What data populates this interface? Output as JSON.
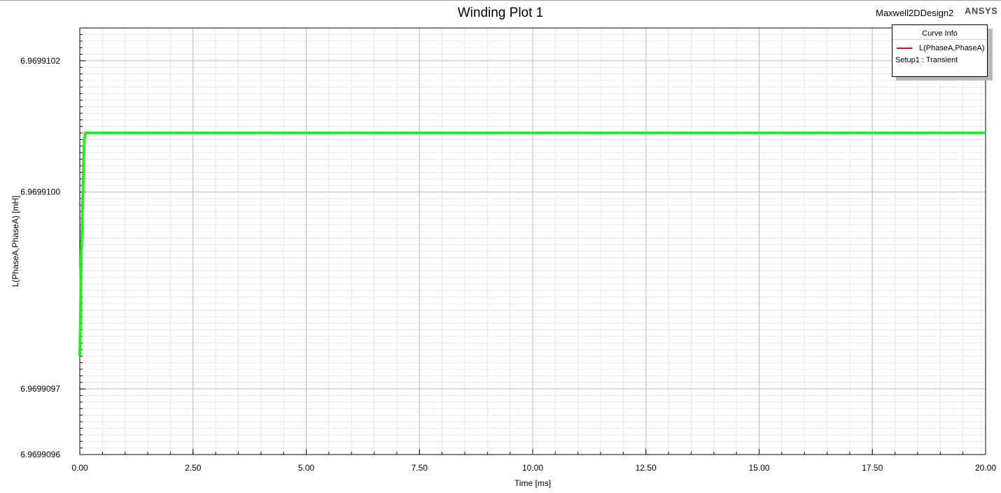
{
  "header": {
    "title": "Winding Plot 1",
    "design_name": "Maxwell2DDesign2",
    "brand": "ANSYS"
  },
  "legend": {
    "header": "Curve Info",
    "series_label": "L(PhaseA,PhaseA)",
    "setup_label": "Setup1 : Transient",
    "swatch_color": "#d6001c"
  },
  "chart_data": {
    "type": "line",
    "title": "Winding Plot 1",
    "xlabel": "Time [ms]",
    "ylabel": "L(PhaseA,PhaseA) [mH]",
    "xlim": [
      0,
      20
    ],
    "ylim": [
      6.9699096,
      6.96991025
    ],
    "x_ticks": [
      "0.00",
      "2.50",
      "5.00",
      "7.50",
      "10.00",
      "12.50",
      "15.00",
      "17.50",
      "20.00"
    ],
    "y_ticks": [
      {
        "value": 6.9699096,
        "label": "6.9699096"
      },
      {
        "value": 6.9699097,
        "label": "6.9699097"
      },
      {
        "value": 6.96991,
        "label": "6.9699100"
      },
      {
        "value": 6.9699102,
        "label": "6.9699102"
      }
    ],
    "grid": true,
    "legend_position": "top-right",
    "series": [
      {
        "name": "L(PhaseA,PhaseA)",
        "color": "#22ee22",
        "x": [
          0,
          0.01,
          0.02,
          0.03,
          0.05,
          0.07,
          0.08,
          0.1,
          0.12,
          20
        ],
        "y": [
          6.96990975,
          6.96990979,
          6.96990984,
          6.9699099,
          6.96990995,
          6.96991,
          6.96991004,
          6.96991008,
          6.96991009,
          6.96991009
        ]
      }
    ]
  }
}
